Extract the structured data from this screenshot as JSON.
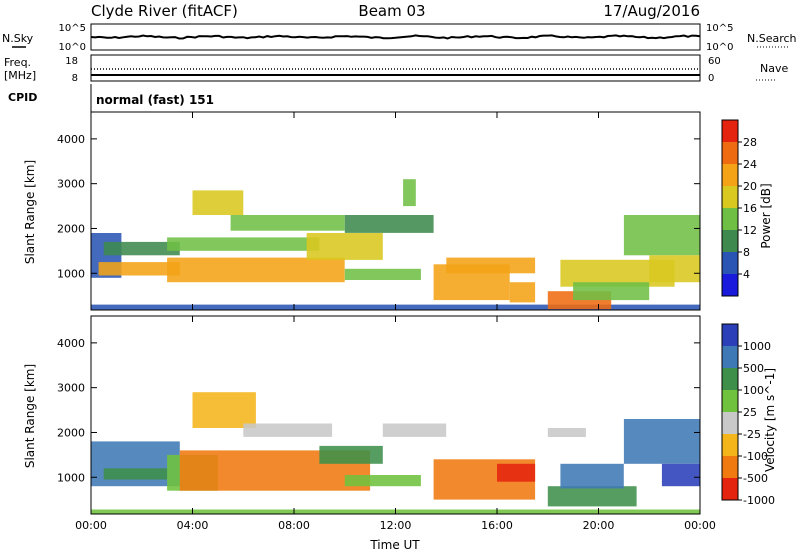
{
  "header": {
    "station": "Clyde River (fitACF)",
    "beam": "Beam 03",
    "date": "17/Aug/2016"
  },
  "noise_panel": {
    "left_label": "N.Sky",
    "right_label": "N.Search",
    "left_ticks": [
      "10^5",
      "10^0"
    ],
    "right_ticks": [
      "10^5",
      "10^0"
    ]
  },
  "freq_panel": {
    "left_label_line1": "Freq.",
    "left_label_line2": "[MHz]",
    "right_label": "Nave",
    "left_ticks": [
      "18",
      "8"
    ],
    "right_ticks": [
      "60",
      "0"
    ]
  },
  "cpid": {
    "label": "CPID",
    "value": "normal (fast) 151"
  },
  "chart_data": [
    {
      "type": "heatmap",
      "title": "",
      "parameter": "Power [dB]",
      "xlabel": "",
      "ylabel": "Slant Range [km]",
      "ylim": [
        180,
        4600
      ],
      "y_ticks": [
        "1000",
        "2000",
        "3000",
        "4000"
      ],
      "colorbar_ticks": [
        "4",
        "8",
        "12",
        "16",
        "20",
        "24",
        "28"
      ],
      "colorscale": [
        "#1a1adc",
        "#2a55b4",
        "#3e8a4e",
        "#6fbf45",
        "#d9c81f",
        "#f4a316",
        "#ef6b12",
        "#e52410"
      ],
      "bands": [
        {
          "t0": 0.0,
          "t1": 24.0,
          "r0": 180,
          "r1": 300,
          "level": 6
        },
        {
          "t0": 0.0,
          "t1": 1.2,
          "r0": 900,
          "r1": 1900,
          "level": 9
        },
        {
          "t0": 0.3,
          "t1": 3.5,
          "r0": 950,
          "r1": 1250,
          "level": 22
        },
        {
          "t0": 0.5,
          "t1": 3.5,
          "r0": 1400,
          "r1": 1700,
          "level": 11
        },
        {
          "t0": 3.0,
          "t1": 10.0,
          "r0": 800,
          "r1": 1350,
          "level": 25
        },
        {
          "t0": 3.0,
          "t1": 9.0,
          "r0": 1500,
          "r1": 1800,
          "level": 16
        },
        {
          "t0": 4.0,
          "t1": 6.0,
          "r0": 2300,
          "r1": 2850,
          "level": 19
        },
        {
          "t0": 5.5,
          "t1": 10.0,
          "r0": 1950,
          "r1": 2300,
          "level": 15
        },
        {
          "t0": 8.5,
          "t1": 11.5,
          "r0": 1300,
          "r1": 1900,
          "level": 18
        },
        {
          "t0": 10.0,
          "t1": 13.0,
          "r0": 850,
          "r1": 1100,
          "level": 16
        },
        {
          "t0": 10.0,
          "t1": 13.5,
          "r0": 1900,
          "r1": 2300,
          "level": 13
        },
        {
          "t0": 12.3,
          "t1": 12.8,
          "r0": 2500,
          "r1": 3100,
          "level": 17
        },
        {
          "t0": 13.5,
          "t1": 16.5,
          "r0": 400,
          "r1": 1200,
          "level": 24
        },
        {
          "t0": 14.0,
          "t1": 17.5,
          "r0": 1000,
          "r1": 1350,
          "level": 22
        },
        {
          "t0": 16.5,
          "t1": 17.5,
          "r0": 350,
          "r1": 800,
          "level": 22
        },
        {
          "t0": 18.0,
          "t1": 20.5,
          "r0": 200,
          "r1": 600,
          "level": 28
        },
        {
          "t0": 18.5,
          "t1": 23.0,
          "r0": 700,
          "r1": 1300,
          "level": 18
        },
        {
          "t0": 19.0,
          "t1": 22.0,
          "r0": 400,
          "r1": 800,
          "level": 14
        },
        {
          "t0": 21.0,
          "t1": 24.0,
          "r0": 1400,
          "r1": 2300,
          "level": 14
        },
        {
          "t0": 22.0,
          "t1": 24.0,
          "r0": 800,
          "r1": 1400,
          "level": 18
        }
      ]
    },
    {
      "type": "heatmap",
      "title": "",
      "parameter": "Velocity [m s^-1]",
      "xlabel": "Time UT",
      "ylabel": "Slant Range [km]",
      "ylim": [
        180,
        4600
      ],
      "x_ticks": [
        "00:00",
        "04:00",
        "08:00",
        "12:00",
        "16:00",
        "20:00",
        "00:00"
      ],
      "y_ticks": [
        "1000",
        "2000",
        "3000",
        "4000"
      ],
      "colorbar_ticks": [
        "1000",
        "500",
        "100",
        "25",
        "-25",
        "-100",
        "-500",
        "-1000"
      ],
      "colorscale": [
        "#2a3fb8",
        "#3f79b5",
        "#3e8f4a",
        "#6fc23e",
        "#c8c8c8",
        "#f4b51a",
        "#f07a10",
        "#e52410"
      ],
      "bands": [
        {
          "t0": 0.0,
          "t1": 24.0,
          "r0": 180,
          "r1": 280,
          "level": 3
        },
        {
          "t0": 0.0,
          "t1": 3.5,
          "r0": 800,
          "r1": 1800,
          "level": 1
        },
        {
          "t0": 0.5,
          "t1": 3.0,
          "r0": 950,
          "r1": 1200,
          "level": 2
        },
        {
          "t0": 3.0,
          "t1": 5.0,
          "r0": 700,
          "r1": 1500,
          "level": 3
        },
        {
          "t0": 3.5,
          "t1": 11.0,
          "r0": 700,
          "r1": 1600,
          "level": 6
        },
        {
          "t0": 4.0,
          "t1": 6.5,
          "r0": 2100,
          "r1": 2900,
          "level": 5
        },
        {
          "t0": 6.0,
          "t1": 9.5,
          "r0": 1900,
          "r1": 2200,
          "level": 4
        },
        {
          "t0": 9.0,
          "t1": 11.5,
          "r0": 1300,
          "r1": 1700,
          "level": 2
        },
        {
          "t0": 10.0,
          "t1": 13.0,
          "r0": 800,
          "r1": 1050,
          "level": 3
        },
        {
          "t0": 11.5,
          "t1": 14.0,
          "r0": 1900,
          "r1": 2200,
          "level": 4
        },
        {
          "t0": 13.5,
          "t1": 17.5,
          "r0": 500,
          "r1": 1400,
          "level": 6
        },
        {
          "t0": 16.0,
          "t1": 17.5,
          "r0": 900,
          "r1": 1300,
          "level": 7
        },
        {
          "t0": 18.0,
          "t1": 21.5,
          "r0": 350,
          "r1": 800,
          "level": 2
        },
        {
          "t0": 18.5,
          "t1": 21.0,
          "r0": 750,
          "r1": 1300,
          "level": 1
        },
        {
          "t0": 18.0,
          "t1": 19.5,
          "r0": 1900,
          "r1": 2100,
          "level": 4
        },
        {
          "t0": 21.0,
          "t1": 24.0,
          "r0": 1300,
          "r1": 2300,
          "level": 1
        },
        {
          "t0": 22.5,
          "t1": 24.0,
          "r0": 800,
          "r1": 1300,
          "level": 0
        }
      ]
    }
  ]
}
